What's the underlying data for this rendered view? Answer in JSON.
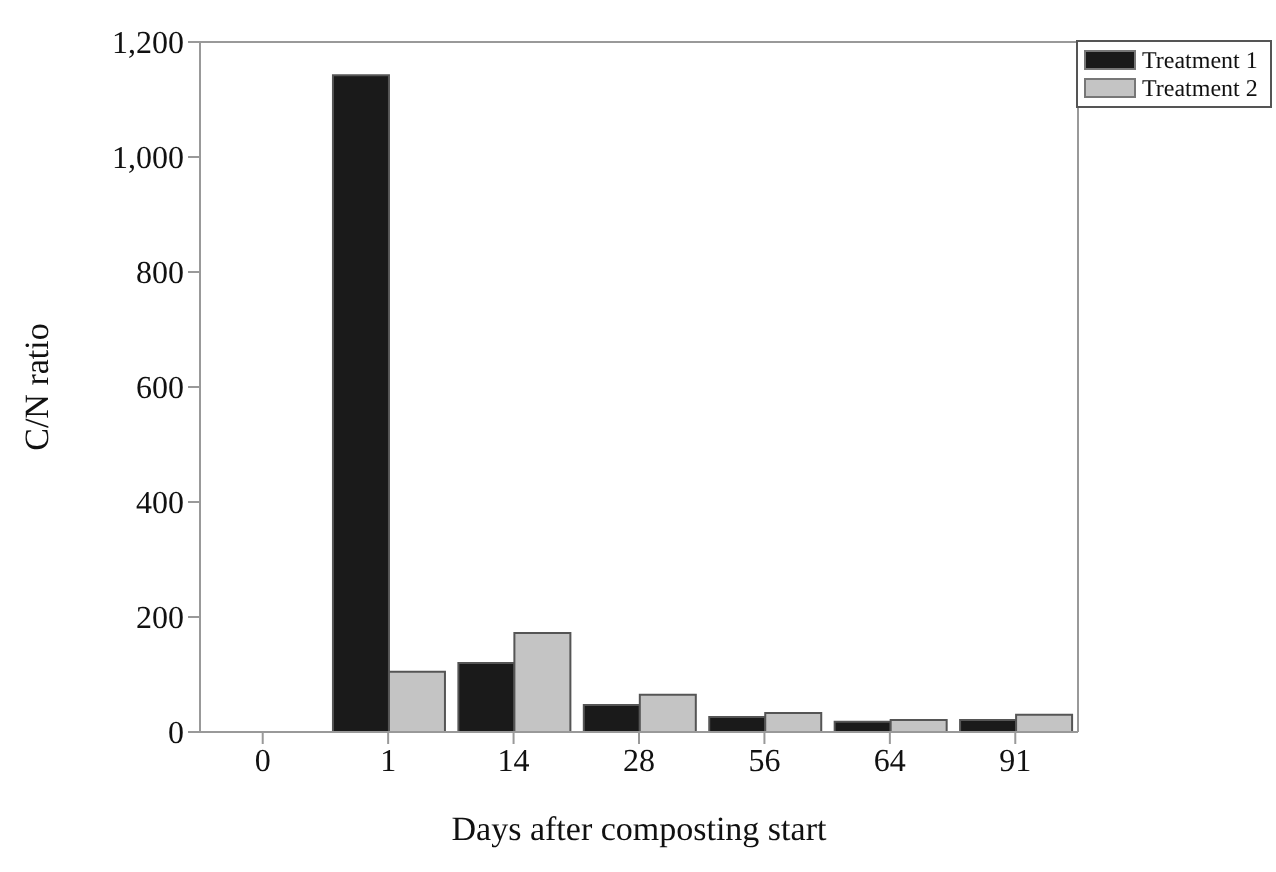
{
  "chart_data": {
    "type": "bar",
    "xlabel": "Days after composting start",
    "ylabel": "C/N ratio",
    "categories": [
      "0",
      "1",
      "14",
      "28",
      "56",
      "64",
      "91"
    ],
    "series": [
      {
        "name": "Treatment 1",
        "color": "#1a1a1a",
        "values": [
          null,
          1142,
          120,
          47,
          26,
          18,
          21
        ]
      },
      {
        "name": "Treatment 2",
        "color": "#c4c4c4",
        "values": [
          null,
          105,
          172,
          65,
          33,
          21,
          30
        ]
      }
    ],
    "ylim": [
      0,
      1200
    ],
    "yticks": [
      0,
      200,
      400,
      600,
      800,
      {
        "value": 1000,
        "label": "1,000"
      },
      {
        "value": 1200,
        "label": "1,200"
      }
    ],
    "grid": false,
    "legend": "top right"
  }
}
